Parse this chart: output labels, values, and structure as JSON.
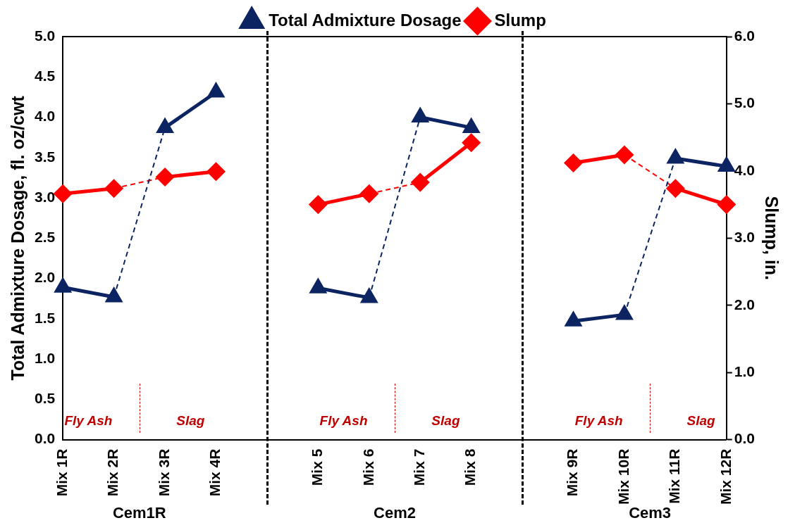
{
  "chart_data": {
    "type": "line",
    "categories": [
      "Mix 1R",
      "Mix 2R",
      "Mix 3R",
      "Mix 4R",
      null,
      "Mix 5",
      "Mix 6",
      "Mix 7",
      "Mix 8",
      null,
      "Mix 9R",
      "Mix 10R",
      "Mix 11R",
      "Mix 12R"
    ],
    "series": [
      {
        "name": "Total Admixture Dosage",
        "color": "#0c2461",
        "marker": "triangle",
        "line_style": "solid",
        "values": [
          1.89,
          1.77,
          3.87,
          4.31,
          null,
          1.88,
          1.76,
          4.0,
          3.87,
          null,
          1.47,
          1.55,
          3.49,
          3.39
        ]
      },
      {
        "name": "Slump",
        "color": "#ff0000",
        "marker": "diamond",
        "line_style": "solid",
        "axis": "y2",
        "values": [
          3.66,
          3.74,
          3.91,
          3.99,
          null,
          3.5,
          3.66,
          3.83,
          4.42,
          null,
          4.12,
          4.24,
          3.74,
          3.5
        ]
      }
    ],
    "ylabel": "Total Admixture Dosage, fl. oz/cwt",
    "y2label": "Slump, in.",
    "ylim": [
      0,
      5
    ],
    "yticks": [
      {
        "value": 0,
        "label": "0.0"
      },
      0.5,
      {
        "value": 1,
        "label": "1.0"
      },
      1.5,
      {
        "value": 2,
        "label": "2.0"
      },
      2.5,
      {
        "value": 3,
        "label": "3.0"
      },
      3.5,
      {
        "value": 4,
        "label": "4.0"
      },
      4.5,
      {
        "value": 5,
        "label": "5.0"
      }
    ],
    "y2lim": [
      0,
      6
    ],
    "y2ticks": [
      {
        "value": 0,
        "label": "0.0"
      },
      {
        "value": 1,
        "label": "1.0"
      },
      {
        "value": 2,
        "label": "2.0"
      },
      {
        "value": 3,
        "label": "3.0"
      },
      {
        "value": 4,
        "label": "4.0"
      },
      {
        "value": 5,
        "label": "5.0"
      },
      {
        "value": 6,
        "label": "6.0"
      }
    ],
    "legend": "top",
    "annotations": [
      "Fly Ash",
      "Slag",
      "Fly Ash",
      "Slag",
      "Fly Ash",
      "Slag",
      "Cem1R",
      "Cem2",
      "Cem3"
    ]
  }
}
